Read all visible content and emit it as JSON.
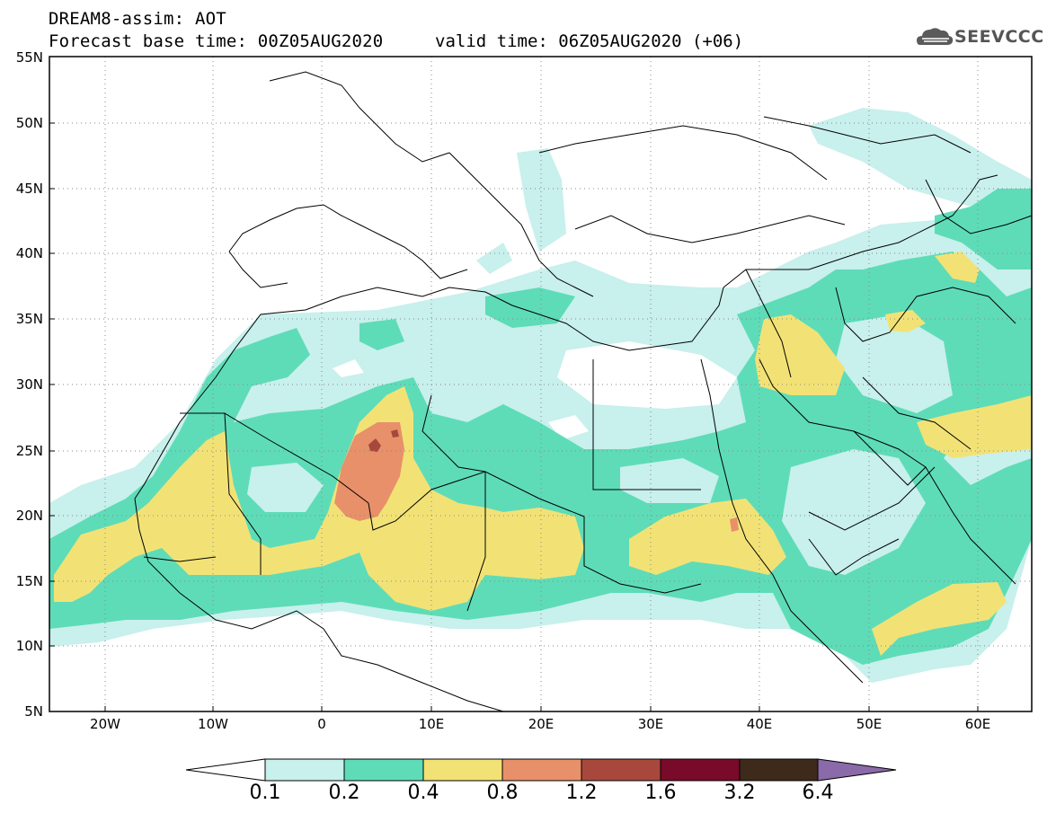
{
  "header": {
    "title": "DREAM8-assim: AOT",
    "base_time": "Forecast base time: 00Z05AUG2020",
    "valid_time": "valid time: 06Z05AUG2020 (+06)",
    "logo_text": "SEEVCCC"
  },
  "map": {
    "lat_range": [
      5,
      55
    ],
    "lon_range": [
      -25,
      65
    ],
    "lat_ticks": [
      "55N",
      "50N",
      "45N",
      "40N",
      "35N",
      "30N",
      "25N",
      "20N",
      "15N",
      "10N",
      "5N"
    ],
    "lon_ticks": [
      "20W",
      "10W",
      "0",
      "10E",
      "20E",
      "30E",
      "40E",
      "50E",
      "60E"
    ]
  },
  "legend": {
    "levels": [
      "0.1",
      "0.2",
      "0.4",
      "0.8",
      "1.2",
      "1.6",
      "3.2",
      "6.4"
    ],
    "colors": {
      "0.1-0.2": "#c8f0ec",
      "0.2-0.4": "#5edcb8",
      "0.4-0.8": "#f2e276",
      "0.8-1.2": "#e8906a",
      "1.2-1.6": "#a8483c",
      "1.6-3.2": "#7a0a2a",
      "3.2-6.4": "#3e2a1a",
      "over-6.4": "#8a6aa8"
    }
  }
}
